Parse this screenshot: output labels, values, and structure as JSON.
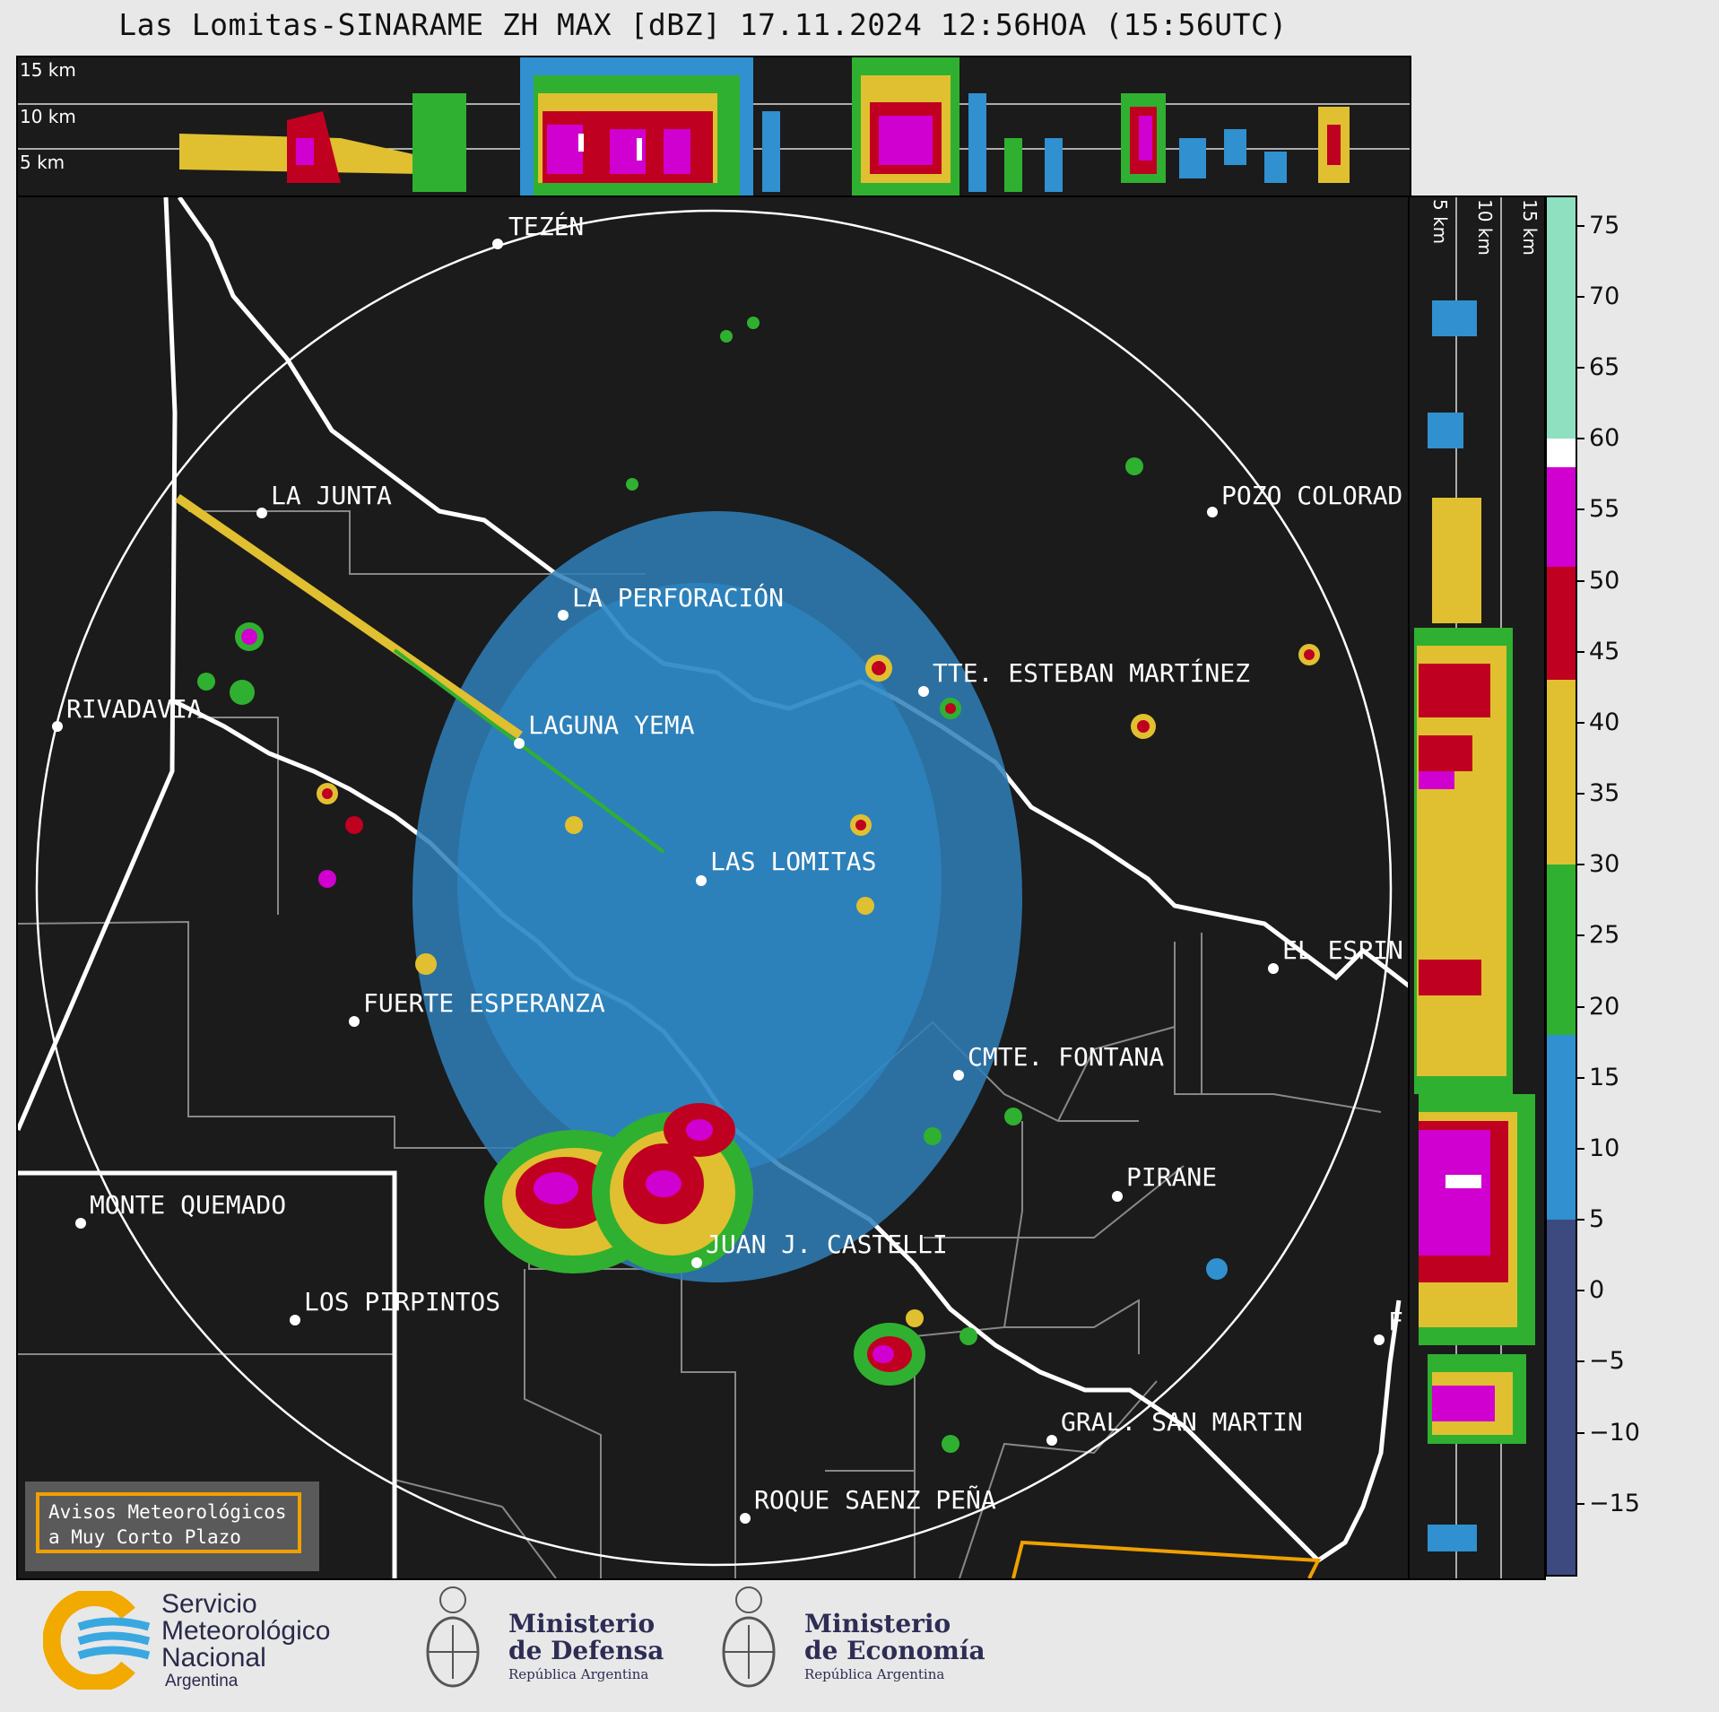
{
  "title": "Las Lomitas-SINARAME ZH MAX [dBZ] 17.11.2024 12:56HOA (15:56UTC)",
  "top_panel": {
    "altitude_labels": [
      "15 km",
      "10 km",
      "5 km"
    ]
  },
  "right_panel": {
    "altitude_labels": [
      "5 km",
      "10 km",
      "15 km"
    ]
  },
  "cities": [
    {
      "name": "TEZÉN",
      "id": "tezen"
    },
    {
      "name": "LA JUNTA",
      "id": "la-junta"
    },
    {
      "name": "POZO COLORAD",
      "id": "pozo-colorado"
    },
    {
      "name": "LA PERFORACIÓN",
      "id": "la-perforacion"
    },
    {
      "name": "TTE. ESTEBAN MARTÍNEZ",
      "id": "tte-esteban-martinez"
    },
    {
      "name": "RIVADAVIA",
      "id": "rivadavia"
    },
    {
      "name": "LAGUNA YEMA",
      "id": "laguna-yema"
    },
    {
      "name": "LAS LOMITAS",
      "id": "las-lomitas"
    },
    {
      "name": "EL ESPIN",
      "id": "el-espin"
    },
    {
      "name": "FUERTE ESPERANZA",
      "id": "fuerte-esperanza"
    },
    {
      "name": "CMTE. FONTANA",
      "id": "cmte-fontana"
    },
    {
      "name": "PIRANE",
      "id": "pirane"
    },
    {
      "name": "MONTE QUEMADO",
      "id": "monte-quemado"
    },
    {
      "name": "JUAN J. CASTELLI",
      "id": "juan-j-castelli"
    },
    {
      "name": "LOS PIRPINTOS",
      "id": "los-pirpintos"
    },
    {
      "name": "F",
      "id": "edge-f"
    },
    {
      "name": "GRAL. SAN MARTIN",
      "id": "gral-san-martin"
    },
    {
      "name": "ROQUE SAENZ PEÑA",
      "id": "roque-saenz-pena"
    }
  ],
  "warning_box": {
    "line1": "Avisos Meteorológicos",
    "line2": "a Muy Corto Plazo"
  },
  "colorbar": {
    "unit": "dBZ",
    "tick_labels": [
      "75",
      "70",
      "65",
      "60",
      "55",
      "50",
      "45",
      "40",
      "35",
      "30",
      "25",
      "20",
      "15",
      "10",
      "5",
      "0",
      "−5",
      "−10",
      "−15"
    ],
    "min": -20,
    "max": 77,
    "bands": [
      {
        "from": 60,
        "to": 77,
        "color": "#8ee0c0"
      },
      {
        "from": 58,
        "to": 60,
        "color": "#ffffff"
      },
      {
        "from": 51,
        "to": 58,
        "color": "#d000d0"
      },
      {
        "from": 43,
        "to": 51,
        "color": "#c00020"
      },
      {
        "from": 30,
        "to": 43,
        "color": "#e0c030"
      },
      {
        "from": 18,
        "to": 30,
        "color": "#30b030"
      },
      {
        "from": 5,
        "to": 18,
        "color": "#3090d0"
      },
      {
        "from": -20,
        "to": 5,
        "color": "#3c4a80"
      }
    ]
  },
  "logos": {
    "smn_line1": "Servicio",
    "smn_line2": "Meteorológico",
    "smn_line3": "Nacional",
    "smn_line4": "Argentina",
    "defensa_line1": "Ministerio",
    "defensa_line2": "de Defensa",
    "defensa_line3": "República Argentina",
    "economia_line1": "Ministerio",
    "economia_line2": "de Economía",
    "economia_line3": "República Argentina"
  },
  "colors": {
    "background": "#1b1b1b",
    "warning_border": "#f0a000",
    "border_lines": "#ffffff",
    "department_lines": "#888888"
  }
}
